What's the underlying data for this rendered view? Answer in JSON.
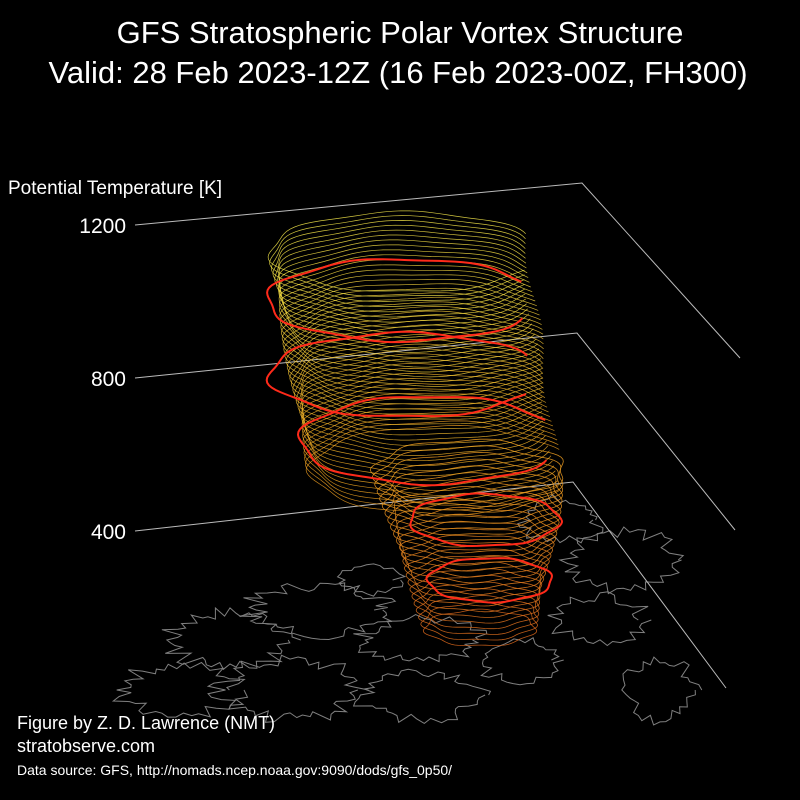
{
  "figure": {
    "title_line1": "GFS Stratospheric Polar Vortex Structure",
    "title_line2": "Valid: 28 Feb 2023-12Z  (16 Feb 2023-00Z, FH300)",
    "credit_line1": "Figure by Z. D. Lawrence (NMT)",
    "credit_line2": "stratobserve.com",
    "source": "Data source: GFS, http://nomads.ncep.noaa.gov:9090/dods/gfs_0p50/"
  },
  "chart_data": {
    "type": "3d-isosurface",
    "z_axis": {
      "label": "Potential Temperature [K]",
      "ticks": [
        400,
        800,
        1200
      ],
      "range": [
        400,
        1200
      ]
    },
    "grid": true,
    "colors": {
      "background": "#000000",
      "text": "#ffffff",
      "axis_lines": "#bbbbbb",
      "coastlines": "#808080",
      "edge_contour": "#ff2a1a",
      "surface_low": "#c8531a",
      "surface_mid": "#e8a020",
      "surface_high": "#f5e84a"
    }
  }
}
